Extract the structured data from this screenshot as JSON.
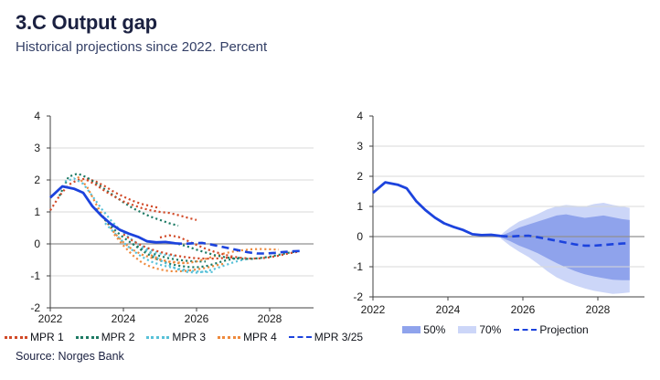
{
  "header": {
    "title": "3.C Output gap",
    "subtitle": "Historical projections since 2022. Percent"
  },
  "source": "Source: Norges Bank",
  "colors": {
    "mpr1": "#d14a28",
    "mpr2": "#1d7a64",
    "mpr3": "#58c1d8",
    "mpr4": "#ee8a3d",
    "blue": "#1c43dd",
    "fan50": "#8fa3ec",
    "fan70": "#ccd6f8",
    "grid_line": "#d9d9d9",
    "zero_line": "#909090",
    "axis": "#404040"
  },
  "left_legend": [
    {
      "label": "MPR 1",
      "color": "mpr1",
      "style": "dotted"
    },
    {
      "label": "MPR 2",
      "color": "mpr2",
      "style": "dotted"
    },
    {
      "label": "MPR 3",
      "color": "mpr3",
      "style": "dotted"
    },
    {
      "label": "MPR 4",
      "color": "mpr4",
      "style": "dotted"
    },
    {
      "label": "MPR 3/25",
      "color": "blue",
      "style": "dashed"
    }
  ],
  "right_legend": [
    {
      "label": "50%",
      "color": "fan50",
      "style": "box"
    },
    {
      "label": "70%",
      "color": "fan70",
      "style": "box"
    },
    {
      "label": "Projection",
      "color": "blue",
      "style": "dashed"
    }
  ],
  "chart_data": [
    {
      "type": "line",
      "panel": "left",
      "title": "Output gap – historical MPR projections",
      "xlabel": "",
      "ylabel": "Percent",
      "xlim": [
        2022,
        2029.2
      ],
      "ylim": [
        -2,
        4
      ],
      "xticks": [
        2022,
        2024,
        2026,
        2028
      ],
      "yticks": [
        -2,
        -1,
        0,
        1,
        2,
        3,
        4
      ],
      "grid": true,
      "series": [
        {
          "name": "MPR 1/22",
          "color": "mpr1",
          "dash": "dotted",
          "x0": 2022.0,
          "step": 0.25,
          "values": [
            1.05,
            1.5,
            1.85,
            2.0,
            2.05,
            1.95,
            1.8,
            1.62,
            1.48,
            1.35,
            1.25,
            1.18,
            1.12
          ]
        },
        {
          "name": "MPR 2/22",
          "color": "mpr2",
          "dash": "dotted",
          "x0": 2022.25,
          "step": 0.25,
          "values": [
            1.5,
            2.1,
            2.2,
            2.08,
            1.9,
            1.7,
            1.5,
            1.3,
            1.12,
            0.98,
            0.85,
            0.75,
            0.65,
            0.57
          ]
        },
        {
          "name": "MPR 3/22",
          "color": "mpr3",
          "dash": "dotted",
          "x0": 2022.4,
          "step": 0.25,
          "values": [
            1.95,
            2.05,
            1.88,
            1.5,
            1.1,
            0.75,
            0.45,
            0.2,
            0.0,
            -0.15,
            -0.27,
            -0.34,
            -0.38
          ]
        },
        {
          "name": "MPR 4/22",
          "color": "mpr4",
          "dash": "dotted",
          "x0": 2022.75,
          "step": 0.25,
          "values": [
            2.1,
            1.8,
            1.25,
            0.75,
            0.35,
            0.05,
            -0.18,
            -0.33,
            -0.43,
            -0.5,
            -0.55,
            -0.58,
            -0.6
          ]
        },
        {
          "name": "MPR 1/23",
          "color": "mpr1",
          "dash": "dotted",
          "x0": 2023.0,
          "step": 0.25,
          "values": [
            2.0,
            1.85,
            1.65,
            1.48,
            1.33,
            1.22,
            1.12,
            1.05,
            1.0,
            0.97,
            0.9,
            0.82,
            0.75
          ]
        },
        {
          "name": "MPR 2/23",
          "color": "mpr2",
          "dash": "dotted",
          "x0": 2023.25,
          "step": 0.25,
          "values": [
            1.1,
            0.75,
            0.45,
            0.2,
            0.0,
            -0.15,
            -0.28,
            -0.38,
            -0.45,
            -0.5,
            -0.53,
            -0.55,
            -0.55
          ]
        },
        {
          "name": "MPR 3/23",
          "color": "mpr3",
          "dash": "dotted",
          "x0": 2023.5,
          "step": 0.25,
          "values": [
            0.65,
            0.35,
            0.05,
            -0.2,
            -0.4,
            -0.55,
            -0.65,
            -0.72,
            -0.78,
            -0.82,
            -0.86,
            -0.88,
            -0.88
          ]
        },
        {
          "name": "MPR 4/23",
          "color": "mpr4",
          "dash": "dotted",
          "x0": 2023.75,
          "step": 0.25,
          "values": [
            0.3,
            -0.05,
            -0.35,
            -0.58,
            -0.72,
            -0.8,
            -0.85,
            -0.86,
            -0.84,
            -0.8,
            -0.75,
            -0.68,
            -0.62
          ]
        },
        {
          "name": "MPR 1/24",
          "color": "mpr1",
          "dash": "dotted",
          "x0": 2024.0,
          "step": 0.25,
          "values": [
            0.3,
            0.1,
            -0.05,
            -0.17,
            -0.25,
            -0.32,
            -0.38,
            -0.42,
            -0.45,
            -0.46,
            -0.46,
            -0.44,
            -0.42
          ]
        },
        {
          "name": "MPR 2/24",
          "color": "mpr2",
          "dash": "dotted",
          "x0": 2024.25,
          "step": 0.25,
          "values": [
            0.0,
            -0.2,
            -0.38,
            -0.52,
            -0.62,
            -0.68,
            -0.72,
            -0.73,
            -0.7,
            -0.62,
            -0.53,
            -0.47,
            -0.42
          ]
        },
        {
          "name": "MPR 3/24",
          "color": "mpr3",
          "dash": "dotted",
          "x0": 2024.5,
          "step": 0.25,
          "values": [
            -0.1,
            -0.3,
            -0.5,
            -0.67,
            -0.8,
            -0.88,
            -0.9,
            -0.86,
            -0.78,
            -0.68,
            -0.58,
            -0.5,
            -0.45
          ]
        },
        {
          "name": "MPR 4/24",
          "color": "mpr4",
          "dash": "dotted",
          "x0": 2024.75,
          "step": 0.25,
          "values": [
            -0.35,
            -0.48,
            -0.56,
            -0.6,
            -0.6,
            -0.55,
            -0.47,
            -0.38,
            -0.3,
            -0.24,
            -0.2,
            -0.17,
            -0.16,
            -0.17,
            -0.18
          ]
        },
        {
          "name": "MPR 1/25",
          "color": "mpr1",
          "dash": "dotted",
          "x0": 2025.0,
          "step": 0.25,
          "values": [
            0.2,
            0.27,
            0.22,
            0.1,
            -0.03,
            -0.15,
            -0.25,
            -0.33,
            -0.4,
            -0.44,
            -0.46,
            -0.45,
            -0.42,
            -0.37,
            -0.3,
            -0.25
          ]
        },
        {
          "name": "MPR 2/25",
          "color": "mpr2",
          "dash": "dotted",
          "x0": 2025.25,
          "step": 0.25,
          "values": [
            0.05,
            0.0,
            -0.08,
            -0.18,
            -0.27,
            -0.35,
            -0.41,
            -0.45,
            -0.47,
            -0.47,
            -0.44,
            -0.4,
            -0.34,
            -0.28,
            -0.24
          ]
        },
        {
          "name": "Output gap actual",
          "color": "blue",
          "dash": "solid",
          "x": [
            2022.0,
            2022.33,
            2022.66,
            2022.9,
            2023.15,
            2023.4,
            2023.65,
            2023.9,
            2024.15,
            2024.4,
            2024.65,
            2024.9,
            2025.15,
            2025.4
          ],
          "values": [
            1.45,
            1.8,
            1.72,
            1.6,
            1.18,
            0.88,
            0.63,
            0.44,
            0.32,
            0.22,
            0.08,
            0.05,
            0.06,
            0.02
          ]
        },
        {
          "name": "MPR 3/25",
          "color": "blue",
          "dash": "dashed",
          "x": [
            2025.4,
            2025.65,
            2025.9,
            2026.15,
            2026.4,
            2026.65,
            2026.9,
            2027.15,
            2027.4,
            2027.65,
            2027.9,
            2028.15,
            2028.4,
            2028.65,
            2028.85
          ],
          "values": [
            0.02,
            0.0,
            0.02,
            0.03,
            -0.02,
            -0.08,
            -0.14,
            -0.2,
            -0.26,
            -0.3,
            -0.3,
            -0.28,
            -0.25,
            -0.23,
            -0.22
          ]
        }
      ]
    },
    {
      "type": "line",
      "panel": "right",
      "title": "Output gap – projection with fan chart",
      "xlabel": "",
      "ylabel": "Percent",
      "xlim": [
        2022,
        2029.24
      ],
      "ylim": [
        -2,
        4
      ],
      "xticks": [
        2022,
        2024,
        2026,
        2028
      ],
      "yticks": [
        -2,
        -1,
        0,
        1,
        2,
        3,
        4
      ],
      "grid": true,
      "bands": [
        {
          "name": "70%",
          "color": "fan70",
          "x": [
            2025.4,
            2025.65,
            2025.9,
            2026.15,
            2026.4,
            2026.65,
            2026.9,
            2027.15,
            2027.4,
            2027.65,
            2027.9,
            2028.15,
            2028.4,
            2028.65,
            2028.85
          ],
          "upper": [
            0.05,
            0.3,
            0.5,
            0.62,
            0.75,
            0.9,
            1.0,
            1.05,
            1.02,
            1.0,
            1.08,
            1.12,
            1.05,
            1.0,
            0.95
          ],
          "lower": [
            -0.05,
            -0.3,
            -0.5,
            -0.68,
            -0.9,
            -1.15,
            -1.35,
            -1.5,
            -1.62,
            -1.72,
            -1.8,
            -1.85,
            -1.9,
            -1.88,
            -1.85
          ]
        },
        {
          "name": "50%",
          "color": "fan50",
          "x": [
            2025.4,
            2025.65,
            2025.9,
            2026.15,
            2026.4,
            2026.65,
            2026.9,
            2027.15,
            2027.4,
            2027.65,
            2027.9,
            2028.15,
            2028.4,
            2028.65,
            2028.85
          ],
          "upper": [
            0.02,
            0.15,
            0.3,
            0.4,
            0.5,
            0.6,
            0.7,
            0.74,
            0.68,
            0.62,
            0.66,
            0.7,
            0.64,
            0.58,
            0.55
          ],
          "lower": [
            -0.02,
            -0.15,
            -0.3,
            -0.42,
            -0.55,
            -0.72,
            -0.88,
            -1.02,
            -1.15,
            -1.25,
            -1.32,
            -1.38,
            -1.43,
            -1.45,
            -1.45
          ]
        }
      ],
      "series": [
        {
          "name": "Output gap actual",
          "color": "blue",
          "dash": "solid",
          "x": [
            2022.0,
            2022.33,
            2022.66,
            2022.9,
            2023.15,
            2023.4,
            2023.65,
            2023.9,
            2024.15,
            2024.4,
            2024.65,
            2024.9,
            2025.15,
            2025.4
          ],
          "values": [
            1.45,
            1.8,
            1.72,
            1.6,
            1.18,
            0.88,
            0.63,
            0.44,
            0.32,
            0.22,
            0.08,
            0.05,
            0.06,
            0.02
          ]
        },
        {
          "name": "Projection",
          "color": "blue",
          "dash": "dashed",
          "x": [
            2025.4,
            2025.65,
            2025.9,
            2026.15,
            2026.4,
            2026.65,
            2026.9,
            2027.15,
            2027.4,
            2027.65,
            2027.9,
            2028.15,
            2028.4,
            2028.65,
            2028.85
          ],
          "values": [
            0.02,
            0.0,
            0.02,
            0.03,
            -0.02,
            -0.08,
            -0.14,
            -0.2,
            -0.26,
            -0.3,
            -0.3,
            -0.28,
            -0.25,
            -0.23,
            -0.22
          ]
        }
      ]
    }
  ]
}
